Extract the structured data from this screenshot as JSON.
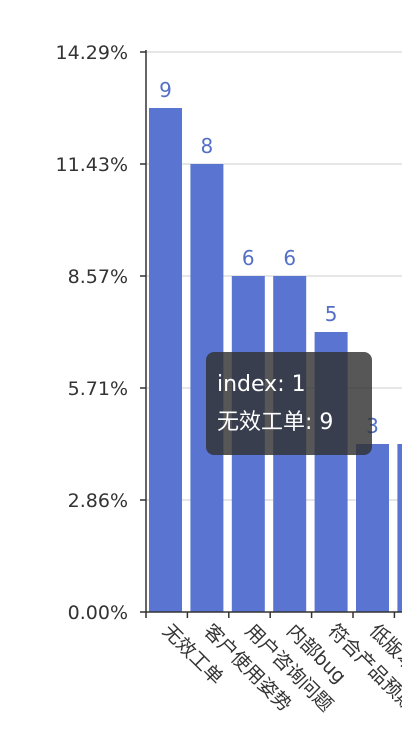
{
  "chart_data": {
    "type": "bar",
    "categories": [
      "无效工单",
      "客户使用姿势",
      "用户咨询问题",
      "内部bug",
      "符合产品预期",
      "低版本"
    ],
    "values": [
      9,
      8,
      6,
      6,
      5,
      3
    ],
    "y_axis_tick_labels": [
      "0.00%",
      "2.86%",
      "5.71%",
      "8.57%",
      "11.43%",
      "14.29%"
    ],
    "ylim": [
      0,
      10
    ],
    "grid": true,
    "colors": {
      "bar": "#5a74d2",
      "bar_label": "#5470c6",
      "axis": "#333333",
      "grid": "#cccccc"
    },
    "partially_visible_extra_bar": true
  },
  "tooltip": {
    "index_line": "index: 1",
    "value_line": "无效工单: 9"
  }
}
